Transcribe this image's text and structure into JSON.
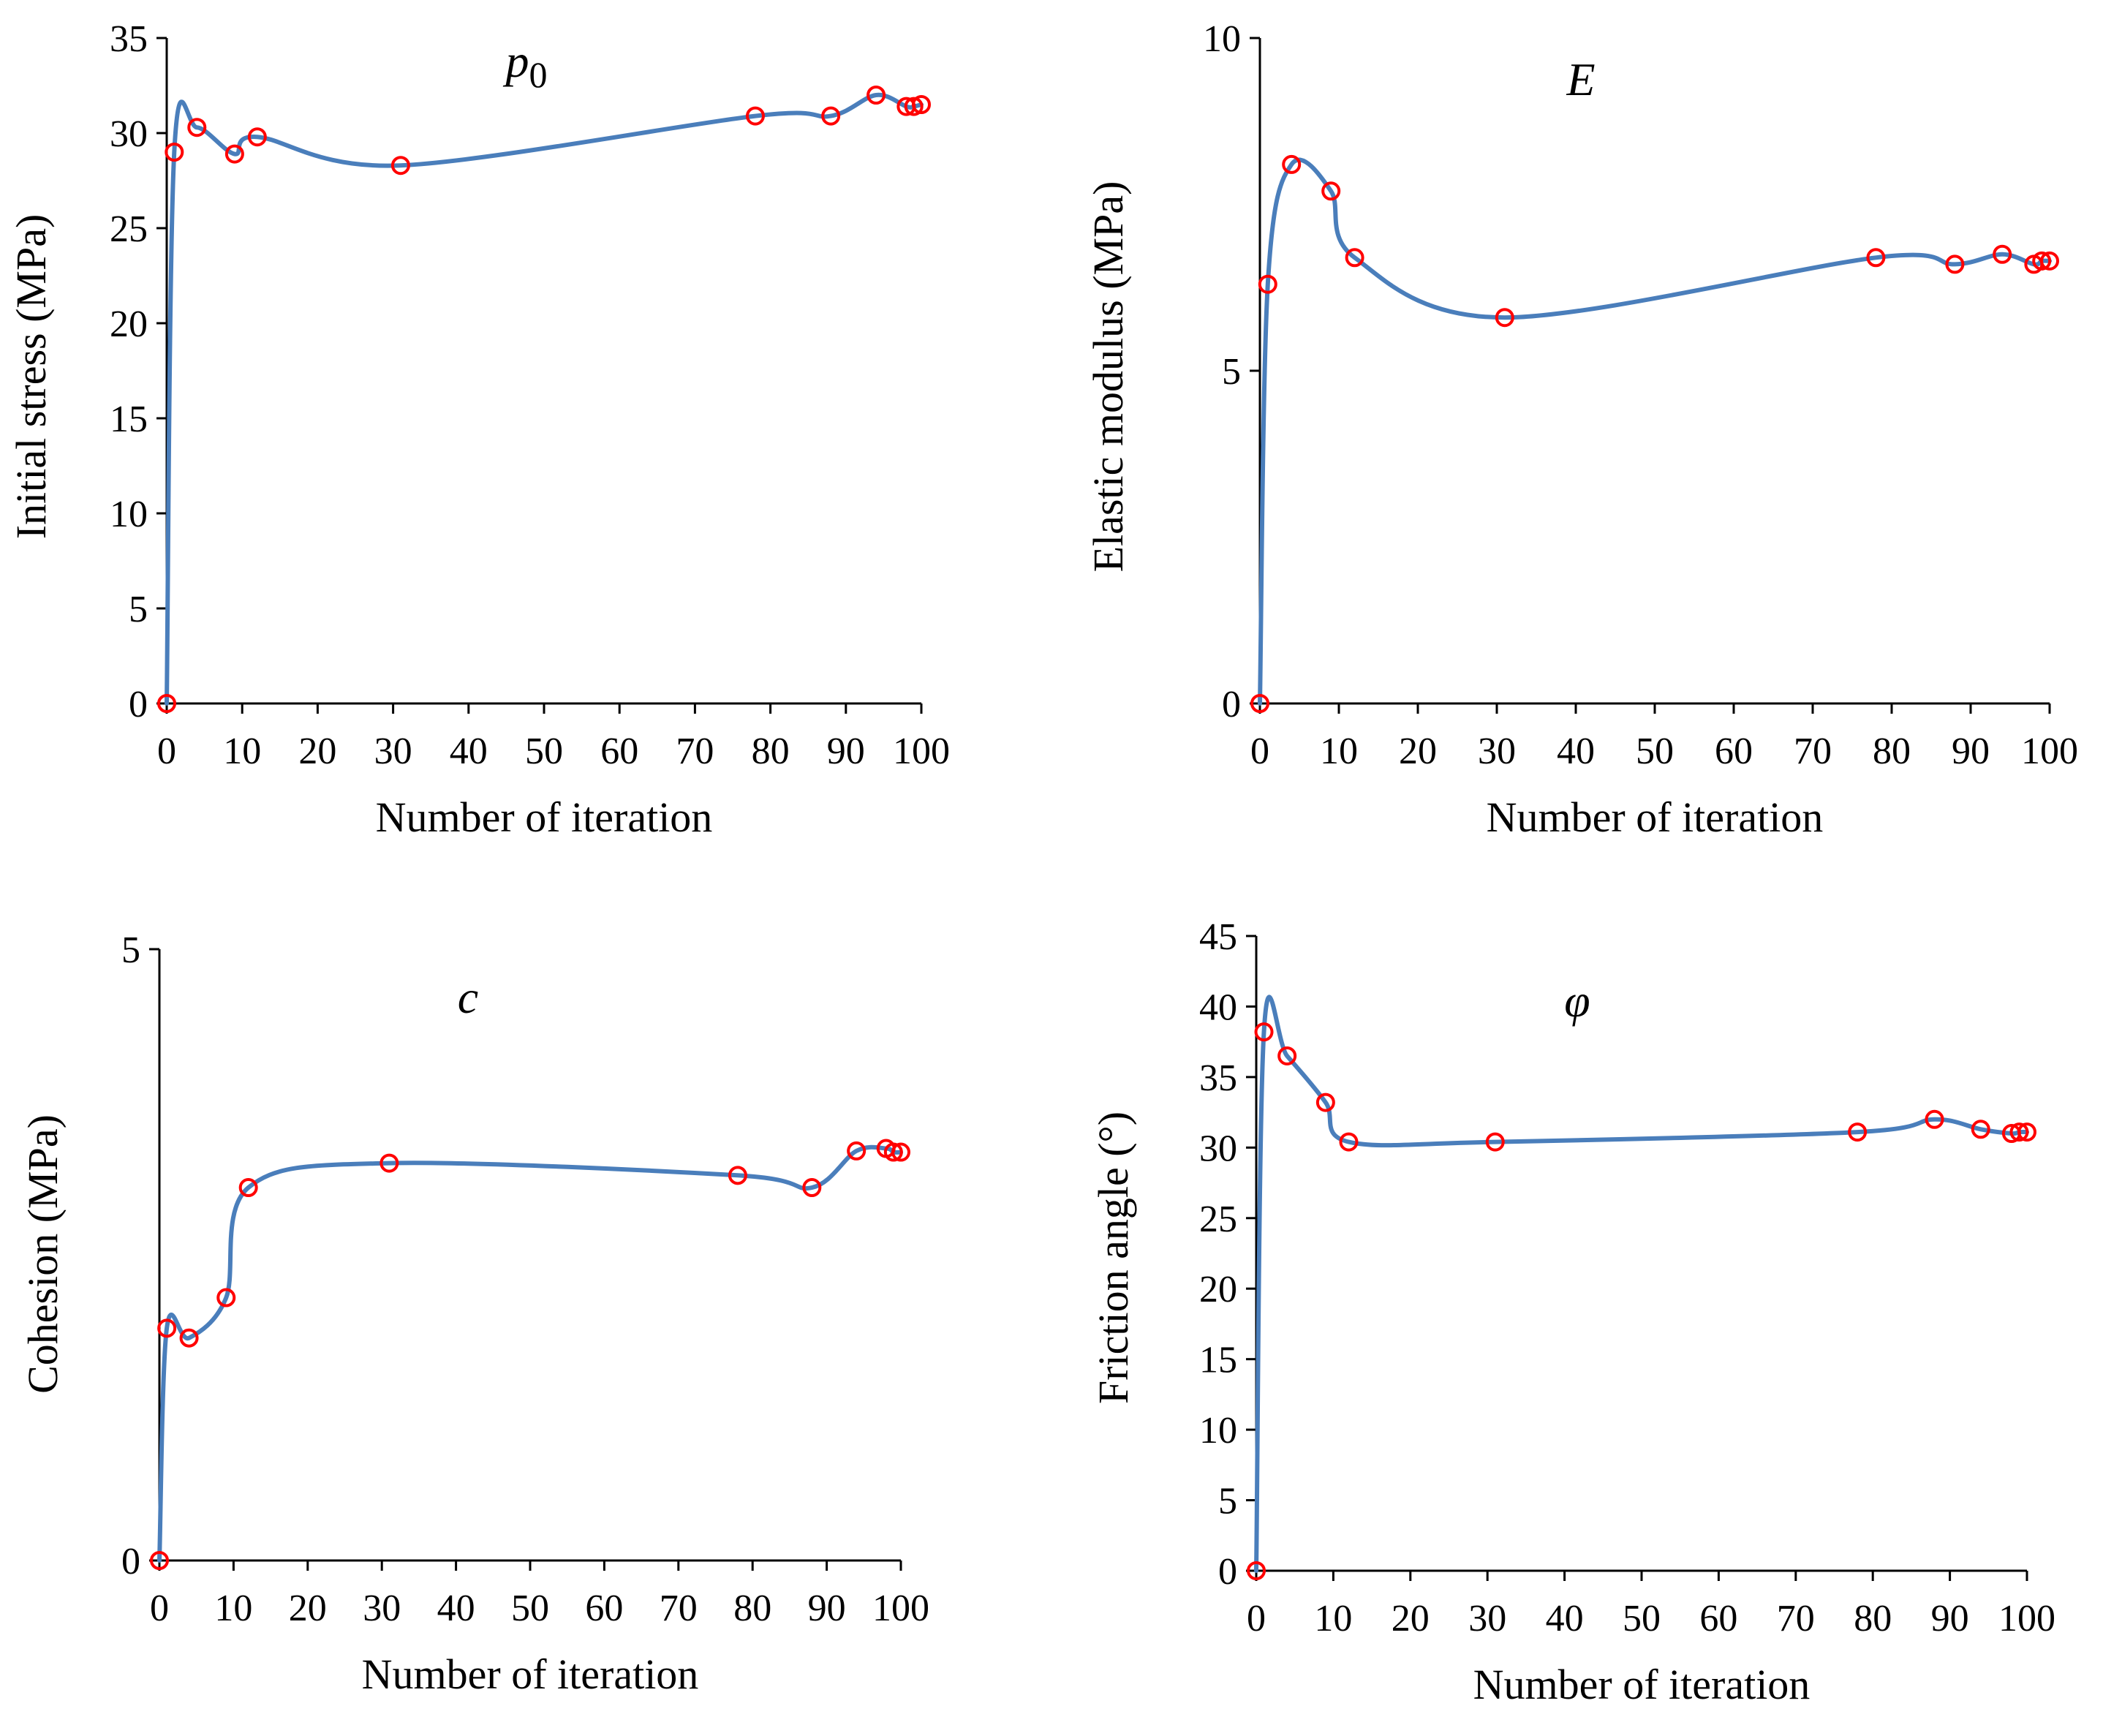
{
  "figure": {
    "x_label": "Number of iteration"
  },
  "chart_data": [
    {
      "type": "line",
      "title": "p",
      "title_subscript": "0",
      "xlabel": "Number of iteration",
      "ylabel": "Initial stress (MPa)",
      "xlim": [
        0,
        100
      ],
      "ylim": [
        0,
        35
      ],
      "xticks": [
        "0",
        "10",
        "20",
        "30",
        "40",
        "50",
        "60",
        "70",
        "80",
        "90",
        "100"
      ],
      "yticks": [
        "0",
        "5",
        "10",
        "15",
        "20",
        "25",
        "30",
        "35"
      ],
      "x": [
        0,
        1,
        4,
        9,
        12,
        31,
        78,
        88,
        94,
        98,
        99,
        100
      ],
      "y": [
        0,
        29.0,
        30.3,
        28.9,
        29.8,
        28.3,
        30.9,
        30.9,
        32.0,
        31.4,
        31.4,
        31.5
      ],
      "line_color": "#4A7EBB",
      "marker_color": "#FF0000"
    },
    {
      "type": "line",
      "title": "E",
      "xlabel": "Number of iteration",
      "ylabel": "Elastic modulus (MPa)",
      "xlim": [
        0,
        100
      ],
      "ylim": [
        0,
        10
      ],
      "xticks": [
        "0",
        "10",
        "20",
        "30",
        "40",
        "50",
        "60",
        "70",
        "80",
        "90",
        "100"
      ],
      "yticks": [
        "0",
        "5",
        "10"
      ],
      "x": [
        0,
        1,
        4,
        9,
        12,
        31,
        78,
        88,
        94,
        98,
        99,
        100
      ],
      "y": [
        0,
        6.3,
        8.1,
        7.7,
        6.7,
        5.8,
        6.7,
        6.6,
        6.75,
        6.6,
        6.65,
        6.65
      ],
      "line_color": "#4A7EBB",
      "marker_color": "#FF0000"
    },
    {
      "type": "line",
      "title": "c",
      "xlabel": "Number of iteration",
      "ylabel": "Cohesion (MPa)",
      "xlim": [
        0,
        100
      ],
      "ylim": [
        0,
        5
      ],
      "xticks": [
        "0",
        "10",
        "20",
        "30",
        "40",
        "50",
        "60",
        "70",
        "80",
        "90",
        "100"
      ],
      "yticks": [
        "0",
        "5"
      ],
      "x": [
        0,
        1,
        4,
        9,
        12,
        31,
        78,
        88,
        94,
        98,
        99,
        100
      ],
      "y": [
        0,
        1.9,
        1.82,
        2.15,
        3.05,
        3.25,
        3.15,
        3.05,
        3.35,
        3.37,
        3.34,
        3.34
      ],
      "line_color": "#4A7EBB",
      "marker_color": "#FF0000"
    },
    {
      "type": "line",
      "title": "φ",
      "xlabel": "Number of iteration",
      "ylabel": "Friction angle (°)",
      "xlim": [
        0,
        100
      ],
      "ylim": [
        0,
        45
      ],
      "xticks": [
        "0",
        "10",
        "20",
        "30",
        "40",
        "50",
        "60",
        "70",
        "80",
        "90",
        "100"
      ],
      "yticks": [
        "0",
        "5",
        "10",
        "15",
        "20",
        "25",
        "30",
        "35",
        "40",
        "45"
      ],
      "x": [
        0,
        1,
        4,
        9,
        12,
        31,
        78,
        88,
        94,
        98,
        99,
        100
      ],
      "y": [
        0,
        38.2,
        36.5,
        33.2,
        30.4,
        30.4,
        31.1,
        32.0,
        31.3,
        31.0,
        31.1,
        31.1
      ],
      "line_color": "#4A7EBB",
      "marker_color": "#FF0000"
    }
  ]
}
